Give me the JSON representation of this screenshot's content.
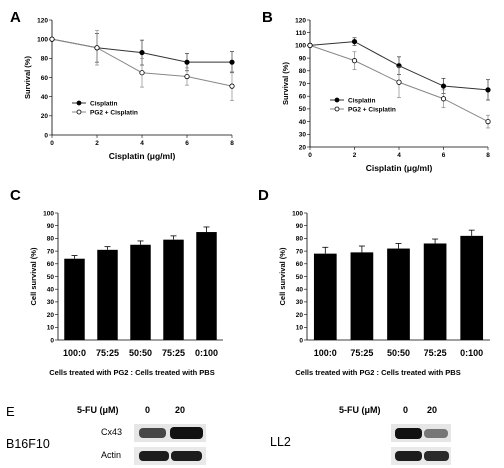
{
  "panel_labels": {
    "a": "A",
    "b": "B",
    "c": "C",
    "d": "D",
    "e": "E"
  },
  "chart_data": [
    {
      "panel": "A",
      "type": "line",
      "xlabel": "Cisplatin (μg/ml)",
      "ylabel": "Survival (%)",
      "xlim": [
        0,
        8
      ],
      "ylim": [
        0,
        120
      ],
      "xticks": [
        "0",
        "2",
        "4",
        "6",
        "8"
      ],
      "yticks": [
        "0",
        "20",
        "40",
        "60",
        "80",
        "100",
        "120"
      ],
      "legend_position": "middle-left",
      "series": [
        {
          "name": "Cisplatin",
          "marker": "filled-circle",
          "x": [
            0,
            2,
            4,
            6,
            8
          ],
          "y": [
            100,
            91,
            86,
            76,
            76
          ],
          "err": [
            0,
            15,
            13,
            9,
            11
          ]
        },
        {
          "name": "PG2 + Cisplatin",
          "marker": "open-circle",
          "x": [
            0,
            2,
            4,
            6,
            8
          ],
          "y": [
            100,
            91,
            65,
            61,
            51
          ],
          "err": [
            0,
            18,
            15,
            9,
            15
          ]
        }
      ]
    },
    {
      "panel": "B",
      "type": "line",
      "xlabel": "Cisplatin (μg/ml)",
      "ylabel": "Survival (%)",
      "xlim": [
        0,
        8
      ],
      "ylim": [
        20,
        120
      ],
      "xticks": [
        "0",
        "2",
        "4",
        "6",
        "8"
      ],
      "yticks": [
        "20",
        "30",
        "40",
        "50",
        "60",
        "70",
        "80",
        "90",
        "100",
        "110",
        "120"
      ],
      "legend_position": "middle-left",
      "series": [
        {
          "name": "Cisplatin",
          "marker": "filled-circle",
          "x": [
            0,
            2,
            4,
            6,
            8
          ],
          "y": [
            100,
            103,
            84,
            68,
            65
          ],
          "err": [
            0,
            3,
            7,
            6,
            8
          ]
        },
        {
          "name": "PG2 + Cisplatin",
          "marker": "open-circle",
          "x": [
            0,
            2,
            4,
            6,
            8
          ],
          "y": [
            100,
            88,
            71,
            58,
            40
          ],
          "err": [
            0,
            7,
            12,
            7,
            5
          ]
        }
      ]
    },
    {
      "panel": "C",
      "type": "bar",
      "xlabel": "Cells treated with PG2 : Cells treated with PBS",
      "ylabel": "Cell survival (%)",
      "ylim": [
        0,
        100
      ],
      "yticks": [
        "0",
        "10",
        "20",
        "30",
        "40",
        "50",
        "60",
        "70",
        "80",
        "90",
        "100"
      ],
      "categories": [
        "100:0",
        "75:25",
        "50:50",
        "75:25",
        "0:100"
      ],
      "values": [
        64,
        71,
        75,
        79,
        85
      ],
      "err": [
        2.5,
        2.5,
        3,
        3,
        4
      ]
    },
    {
      "panel": "D",
      "type": "bar",
      "xlabel": "Cells treated with PG2 : Cells treated with PBS",
      "ylabel": "Cell survival (%)",
      "ylim": [
        0,
        100
      ],
      "yticks": [
        "0",
        "10",
        "20",
        "30",
        "40",
        "50",
        "60",
        "70",
        "80",
        "90",
        "100"
      ],
      "categories": [
        "100:0",
        "75:25",
        "50:50",
        "75:25",
        "0:100"
      ],
      "values": [
        68,
        69,
        72,
        76,
        82
      ],
      "err": [
        5,
        5,
        4,
        3.5,
        4.5
      ]
    }
  ],
  "blot": {
    "header_label": "5-FU (μM)",
    "doses": [
      "0",
      "20"
    ],
    "cell_lines": [
      "B16F10",
      "LL2"
    ],
    "bands": [
      "Cx43",
      "Actin"
    ]
  }
}
